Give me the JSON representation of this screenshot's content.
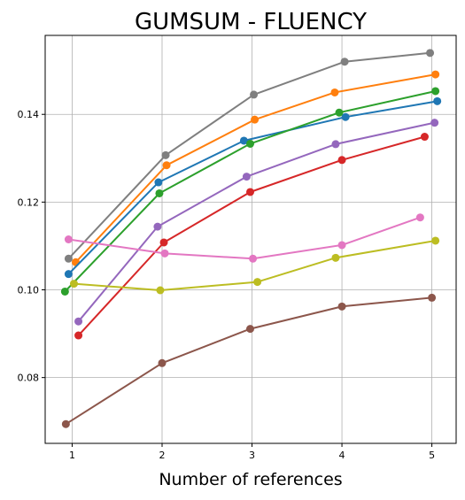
{
  "chart_data": {
    "type": "line",
    "title": "GUMSUM - FLUENCY",
    "xlabel": "Number of references",
    "ylabel": "",
    "xlim": [
      0.7,
      5.27
    ],
    "ylim": [
      0.065,
      0.158
    ],
    "xticks": [
      1,
      2,
      3,
      4,
      5
    ],
    "yticks": [
      0.08,
      0.1,
      0.12,
      0.14
    ],
    "ytick_labels": [
      "0.08",
      "0.10",
      "0.12",
      "0.14"
    ],
    "grid": true,
    "legend": false,
    "series": [
      {
        "color": "#7f7f7f",
        "points": [
          [
            0.96,
            0.1071
          ],
          [
            2.04,
            0.1307
          ],
          [
            3.02,
            0.1445
          ],
          [
            4.03,
            0.152
          ],
          [
            4.98,
            0.154
          ]
        ]
      },
      {
        "color": "#ff7f0e",
        "points": [
          [
            1.04,
            0.1063
          ],
          [
            2.05,
            0.1284
          ],
          [
            3.03,
            0.1388
          ],
          [
            3.92,
            0.145
          ],
          [
            5.04,
            0.1491
          ]
        ]
      },
      {
        "color": "#1f77b4",
        "points": [
          [
            0.96,
            0.1036
          ],
          [
            1.96,
            0.1245
          ],
          [
            2.91,
            0.134
          ],
          [
            4.04,
            0.1394
          ],
          [
            5.06,
            0.143
          ]
        ]
      },
      {
        "color": "#2ca02c",
        "points": [
          [
            0.92,
            0.0996
          ],
          [
            1.97,
            0.122
          ],
          [
            2.98,
            0.1333
          ],
          [
            3.97,
            0.1404
          ],
          [
            5.04,
            0.1453
          ]
        ]
      },
      {
        "color": "#9467bd",
        "points": [
          [
            1.07,
            0.0928
          ],
          [
            1.95,
            0.1144
          ],
          [
            2.94,
            0.1258
          ],
          [
            3.93,
            0.1332
          ],
          [
            5.03,
            0.1381
          ]
        ]
      },
      {
        "color": "#d62728",
        "points": [
          [
            1.07,
            0.0896
          ],
          [
            2.02,
            0.1108
          ],
          [
            2.98,
            0.1223
          ],
          [
            4.0,
            0.1296
          ],
          [
            4.92,
            0.1349
          ]
        ]
      },
      {
        "color": "#e377c2",
        "points": [
          [
            0.96,
            0.1115
          ],
          [
            2.03,
            0.1083
          ],
          [
            3.01,
            0.1071
          ],
          [
            4.0,
            0.1102
          ],
          [
            4.87,
            0.1165
          ]
        ]
      },
      {
        "color": "#bcbd22",
        "points": [
          [
            1.02,
            0.1014
          ],
          [
            1.98,
            0.0999
          ],
          [
            3.06,
            0.1018
          ],
          [
            3.93,
            0.1073
          ],
          [
            5.04,
            0.1112
          ]
        ]
      },
      {
        "color": "#8c564b",
        "points": [
          [
            0.93,
            0.0694
          ],
          [
            2.0,
            0.0833
          ],
          [
            2.98,
            0.0911
          ],
          [
            4.0,
            0.0962
          ],
          [
            5.0,
            0.0982
          ]
        ]
      }
    ]
  }
}
